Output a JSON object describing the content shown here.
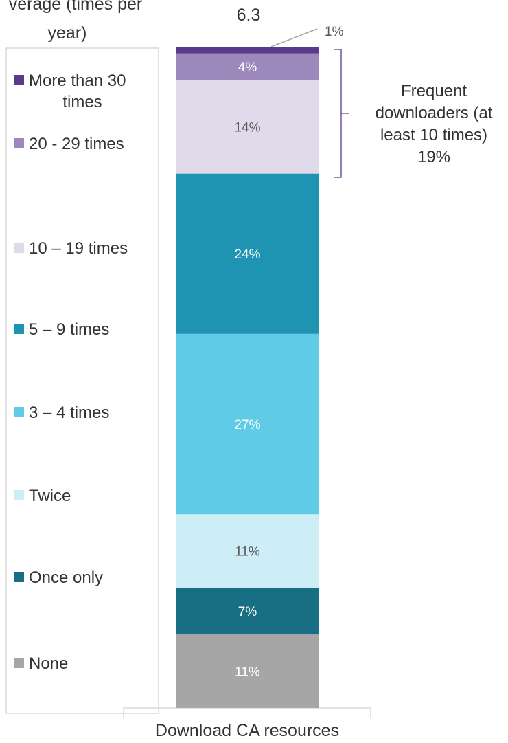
{
  "chart_data": {
    "type": "bar",
    "stacked": true,
    "categories": [
      "Download CA resources"
    ],
    "series": [
      {
        "name": "None",
        "values": [
          11
        ],
        "label": "11%",
        "color": "#a6a6a6"
      },
      {
        "name": "Once only",
        "values": [
          7
        ],
        "label": "7%",
        "color": "#186e82"
      },
      {
        "name": "Twice",
        "values": [
          11
        ],
        "label": "11%",
        "color": "#cdeef7"
      },
      {
        "name": "3 – 4 times",
        "values": [
          27
        ],
        "label": "27%",
        "color": "#60cbe7"
      },
      {
        "name": "5 – 9 times",
        "values": [
          24
        ],
        "label": "24%",
        "color": "#1e94b2"
      },
      {
        "name": "10 – 19 times",
        "values": [
          14
        ],
        "label": "14%",
        "color": "#e0dbeb"
      },
      {
        "name": "20 - 29 times",
        "values": [
          4
        ],
        "label": "4%",
        "color": "#9c88bb"
      },
      {
        "name": "More than 30 times",
        "values": [
          1
        ],
        "label": "1%",
        "color": "#5b3a8c"
      }
    ],
    "legend_position": "left",
    "average_label": "verage (times per year)",
    "average_value": "6.3",
    "annotation": "Frequent downloaders (at least 10 times) 19%"
  },
  "legend_names": {
    "more_than_30_line1": "More than 30",
    "more_than_30_line2": "times"
  },
  "average_lines": [
    "verage (times per",
    "year)"
  ],
  "annotation_lines": [
    "Frequent",
    "downloaders (at",
    "least 10 times)",
    "19%"
  ]
}
